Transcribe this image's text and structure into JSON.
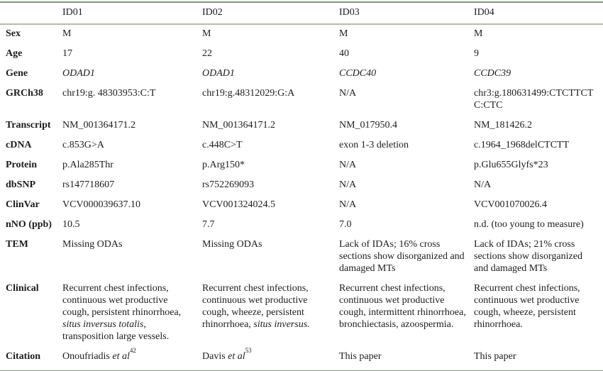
{
  "accent_colors": {
    "outer_rule": "#7e9c74",
    "header_rule": "#b5bcab",
    "text": "#1c1c1c"
  },
  "table": {
    "columns": [
      "",
      "ID01",
      "ID02",
      "ID03",
      "ID04"
    ],
    "rows": [
      {
        "label": "Sex",
        "cells": [
          [
            {
              "t": "M"
            }
          ],
          [
            {
              "t": "M"
            }
          ],
          [
            {
              "t": "M"
            }
          ],
          [
            {
              "t": "M"
            }
          ]
        ]
      },
      {
        "label": "Age",
        "cells": [
          [
            {
              "t": "17"
            }
          ],
          [
            {
              "t": "22"
            }
          ],
          [
            {
              "t": "40"
            }
          ],
          [
            {
              "t": "9"
            }
          ]
        ]
      },
      {
        "label": "Gene",
        "cells": [
          [
            {
              "t": "ODAD1",
              "i": true
            }
          ],
          [
            {
              "t": "ODAD1",
              "i": true
            }
          ],
          [
            {
              "t": "CCDC40",
              "i": true
            }
          ],
          [
            {
              "t": "CCDC39",
              "i": true
            }
          ]
        ]
      },
      {
        "label": "GRCh38",
        "cells": [
          [
            {
              "t": "chr19:g. 48303953:C:T"
            }
          ],
          [
            {
              "t": "chr19:g.48312029:G:A"
            }
          ],
          [
            {
              "t": "N/A"
            }
          ],
          [
            {
              "t": "chr3:g.180631499:CTCTTCTC:CTC"
            }
          ]
        ]
      },
      {
        "label": "Transcript",
        "cells": [
          [
            {
              "t": "NM_001364171.2"
            }
          ],
          [
            {
              "t": "NM_001364171.2"
            }
          ],
          [
            {
              "t": "NM_017950.4"
            }
          ],
          [
            {
              "t": "NM_181426.2"
            }
          ]
        ]
      },
      {
        "label": "cDNA",
        "cells": [
          [
            {
              "t": "c.853G>A"
            }
          ],
          [
            {
              "t": "c.448C>T"
            }
          ],
          [
            {
              "t": "exon 1-3 deletion"
            }
          ],
          [
            {
              "t": "c.1964_1968delCTCTT"
            }
          ]
        ]
      },
      {
        "label": "Protein",
        "cells": [
          [
            {
              "t": "p.Ala285Thr"
            }
          ],
          [
            {
              "t": "p.Arg150*"
            }
          ],
          [
            {
              "t": "N/A"
            }
          ],
          [
            {
              "t": "p.Glu655Glyfs*23"
            }
          ]
        ]
      },
      {
        "label": "dbSNP",
        "cells": [
          [
            {
              "t": "rs147718607"
            }
          ],
          [
            {
              "t": "rs752269093"
            }
          ],
          [
            {
              "t": "N/A"
            }
          ],
          [
            {
              "t": "N/A"
            }
          ]
        ]
      },
      {
        "label": "ClinVar",
        "cells": [
          [
            {
              "t": "VCV000039637.10"
            }
          ],
          [
            {
              "t": "VCV001324024.5"
            }
          ],
          [
            {
              "t": "N/A"
            }
          ],
          [
            {
              "t": "VCV001070026.4"
            }
          ]
        ]
      },
      {
        "label": "nNO (ppb)",
        "cells": [
          [
            {
              "t": "10.5"
            }
          ],
          [
            {
              "t": "7.7"
            }
          ],
          [
            {
              "t": "7.0"
            }
          ],
          [
            {
              "t": "n.d. (too young to measure)"
            }
          ]
        ]
      },
      {
        "label": "TEM",
        "cells": [
          [
            {
              "t": "Missing ODAs"
            }
          ],
          [
            {
              "t": "Missing ODAs"
            }
          ],
          [
            {
              "t": "Lack of IDAs; 16% cross sections show disorganized and damaged MTs"
            }
          ],
          [
            {
              "t": "Lack of IDAs; 21% cross sections show disorganized and damaged MTs"
            }
          ]
        ]
      },
      {
        "label": "Clinical",
        "cells": [
          [
            {
              "t": "Recurrent chest infections, continuous wet productive cough, persistent rhinorrhoea, "
            },
            {
              "t": "situs inversus totalis",
              "i": true
            },
            {
              "t": ", transposition large vessels."
            }
          ],
          [
            {
              "t": "Recurrent chest infections, continuous wet productive cough, wheeze, persistent rhinorrhoea, "
            },
            {
              "t": "situs inversus.",
              "i": true
            }
          ],
          [
            {
              "t": "Recurrent chest infections, continuous wet productive cough, intermittent rhinorrhoea, bronchiectasis, azoospermia."
            }
          ],
          [
            {
              "t": "Recurrent chest infections, continuous wet productive cough, wheeze, persistent rhinorrhoea."
            }
          ]
        ]
      },
      {
        "label": "Citation",
        "cells": [
          [
            {
              "t": "Onoufriadis "
            },
            {
              "t": "et al",
              "i": true
            },
            {
              "t": "42",
              "sup": true
            }
          ],
          [
            {
              "t": "Davis "
            },
            {
              "t": "et al",
              "i": true
            },
            {
              "t": "53",
              "sup": true
            }
          ],
          [
            {
              "t": "This paper"
            }
          ],
          [
            {
              "t": "This paper"
            }
          ]
        ]
      }
    ]
  }
}
